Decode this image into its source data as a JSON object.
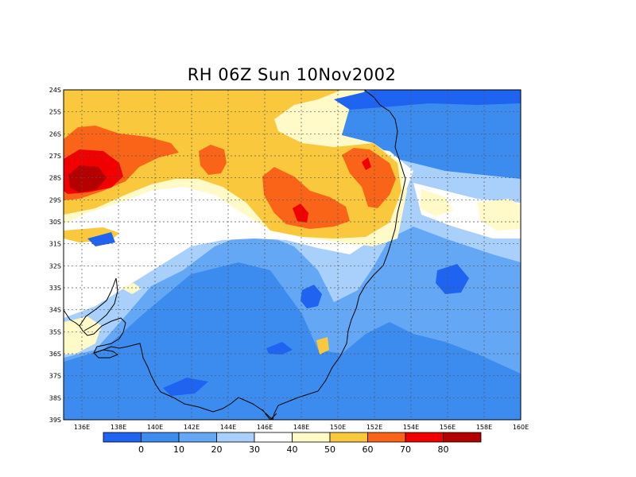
{
  "map": {
    "title": "RH 06Z Sun 10Nov2002",
    "lon_labels": [
      "136E",
      "138E",
      "140E",
      "142E",
      "144E",
      "146E",
      "148E",
      "150E",
      "152E",
      "154E",
      "156E",
      "158E",
      "160E"
    ],
    "lat_labels": [
      "24S",
      "25S",
      "26S",
      "27S",
      "28S",
      "29S",
      "30S",
      "31S",
      "32S",
      "33S",
      "34S",
      "35S",
      "36S",
      "37S",
      "38S",
      "39S"
    ],
    "extent": {
      "lon": [
        135,
        160
      ],
      "lat": [
        -39,
        -24
      ]
    }
  },
  "legend": {
    "labels": [
      "0",
      "10",
      "20",
      "30",
      "40",
      "50",
      "60",
      "70",
      "80"
    ],
    "colors": [
      "#1e64f0",
      "#3c8cf0",
      "#64a8f5",
      "#a8d0fa",
      "#ffffff",
      "#fffac8",
      "#fac83c",
      "#fa6418",
      "#f00000",
      "#b40000"
    ]
  }
}
